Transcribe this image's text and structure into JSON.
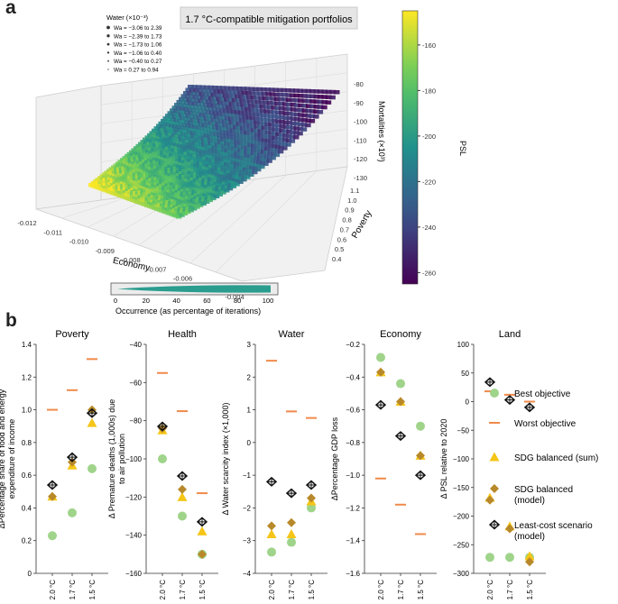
{
  "panel_a_letter": "a",
  "panel_b_letter": "b",
  "chart_data": [
    {
      "type": "scatter",
      "subtype": "3d-scatter",
      "title": "1.7 °C-compatible mitigation portfolios",
      "xlabel": "Economy",
      "ylabel": "Poverty",
      "zlabel": "Mortalities (×10³)",
      "color_label": "PSL",
      "x_ticks": [
        "-0.012",
        "-0.011",
        "-0.010",
        "-0.009",
        "-0.008",
        "-0.007",
        "-0.006",
        "-0.005",
        "-0.004"
      ],
      "y_ticks": [
        "0.4",
        "0.5",
        "0.6",
        "0.7",
        "0.8",
        "0.9",
        "1.0",
        "1.1"
      ],
      "z_ticks": [
        "-80",
        "-90",
        "-100",
        "-110",
        "-120",
        "-130"
      ],
      "colorbar_ticks": [
        "-160",
        "-180",
        "-200",
        "-220",
        "-240",
        "-260"
      ],
      "colorbar_range": [
        -265,
        -145
      ],
      "size_legend_title": "Water (×10⁻³)",
      "size_legend": [
        "Wa = −3.06 to 2.39",
        "Wa = −2.39 to 1.73",
        "Wa = −1.73 to 1.06",
        "Wa = −1.06 to 0.40",
        "Wa = −0.40 to 0.27",
        "Wa = 0.27 to 0.94"
      ],
      "occurrence_label": "Occurrence (as percentage of iterations)",
      "occurrence_ticks": [
        "0",
        "20",
        "40",
        "60",
        "80",
        "100"
      ]
    },
    {
      "type": "scatter",
      "subtype": "categorical-dot-plot",
      "categories": [
        "2.0 °C",
        "1.7 °C",
        "1.5 °C"
      ],
      "legend": [
        {
          "key": "best",
          "label": "Best objective",
          "color": "#9fd48a"
        },
        {
          "key": "worst",
          "label": "Worst objective",
          "color": "#f08a4b"
        },
        {
          "key": "sdg_sum",
          "label": "SDG balanced (sum)",
          "color": "#f5c518"
        },
        {
          "key": "sdg_model",
          "label": "SDG balanced\n(model)",
          "color": "#b8892a"
        },
        {
          "key": "least_cost",
          "label": "Least-cost scenario\n(model)",
          "color": "#111111"
        }
      ],
      "panels": [
        {
          "title": "Poverty",
          "ylabel": "ΔPercentage share of food and energy expenditure of income",
          "ylim": [
            0,
            1.4
          ],
          "yticks": [
            0,
            0.2,
            0.4,
            0.6,
            0.8,
            1.0,
            1.2,
            1.4
          ],
          "tick_labels": [
            "0",
            "0.2",
            "0.4",
            "0.6",
            "0.8",
            "1.0",
            "1.2",
            "1.4"
          ],
          "best": [
            0.23,
            0.37,
            0.64
          ],
          "worst": [
            1.0,
            1.12,
            1.31
          ],
          "sdg_sum": [
            0.47,
            0.66,
            0.92
          ],
          "sdg_model": [
            0.47,
            0.68,
            1.0
          ],
          "least_cost": [
            0.54,
            0.71,
            0.98
          ]
        },
        {
          "title": "Health",
          "ylabel": "Δ Premature deaths (1,000s) due to air pollution",
          "ylim": [
            -160,
            -40
          ],
          "yticks": [
            -160,
            -140,
            -120,
            -100,
            -80,
            -60,
            -40
          ],
          "tick_labels": [
            "−160",
            "−140",
            "−120",
            "−100",
            "−80",
            "−60",
            "−40"
          ],
          "best": [
            -100,
            -130,
            -150
          ],
          "worst": [
            -55,
            -75,
            -118
          ],
          "sdg_sum": [
            -85,
            -120,
            -138
          ],
          "sdg_model": [
            -84,
            -116,
            -150
          ],
          "least_cost": [
            -83,
            -109,
            -133
          ]
        },
        {
          "title": "Water",
          "ylabel": "Δ Water scarcity index (×1,000)",
          "ylim": [
            -4,
            3
          ],
          "yticks": [
            -4,
            -3,
            -2,
            -1,
            0,
            1,
            2,
            3
          ],
          "tick_labels": [
            "−4",
            "−3",
            "−2",
            "−1",
            "0",
            "1",
            "2",
            "3"
          ],
          "best": [
            -3.35,
            -3.05,
            -2.0
          ],
          "worst": [
            2.5,
            0.95,
            0.75
          ],
          "sdg_sum": [
            -2.8,
            -2.8,
            -1.8
          ],
          "sdg_model": [
            -2.55,
            -2.45,
            -1.7
          ],
          "least_cost": [
            -1.2,
            -1.55,
            -1.3
          ]
        },
        {
          "title": "Economy",
          "ylabel": "ΔPercentage GDP loss",
          "ylim": [
            -1.6,
            -0.2
          ],
          "yticks": [
            -1.6,
            -1.4,
            -1.2,
            -1.0,
            -0.8,
            -0.6,
            -0.4,
            -0.2
          ],
          "tick_labels": [
            "−1.6",
            "−1.4",
            "−1.2",
            "−1.0",
            "−0.8",
            "−0.6",
            "−0.4",
            "−0.2"
          ],
          "best": [
            -0.28,
            -0.44,
            -0.7
          ],
          "worst": [
            -1.02,
            -1.18,
            -1.36
          ],
          "sdg_sum": [
            -0.37,
            -0.55,
            -0.88
          ],
          "sdg_model": [
            -0.37,
            -0.55,
            -0.88
          ],
          "least_cost": [
            -0.57,
            -0.76,
            -1.0
          ]
        },
        {
          "title": "Land",
          "ylabel": "Δ PSL relative to 2020",
          "ylim": [
            -300,
            100
          ],
          "yticks": [
            -300,
            -250,
            -200,
            -150,
            -100,
            -50,
            0,
            50,
            100
          ],
          "tick_labels": [
            "−300",
            "−250",
            "−200",
            "−150",
            "−100",
            "−50",
            "0",
            "50",
            "100"
          ],
          "best": [
            -272,
            -272,
            -272
          ],
          "worst": [
            18,
            12,
            0
          ],
          "sdg_sum": [
            -168,
            -218,
            -270
          ],
          "sdg_model": [
            -172,
            -222,
            -280
          ],
          "least_cost": [
            34,
            3,
            -10
          ]
        }
      ]
    }
  ]
}
